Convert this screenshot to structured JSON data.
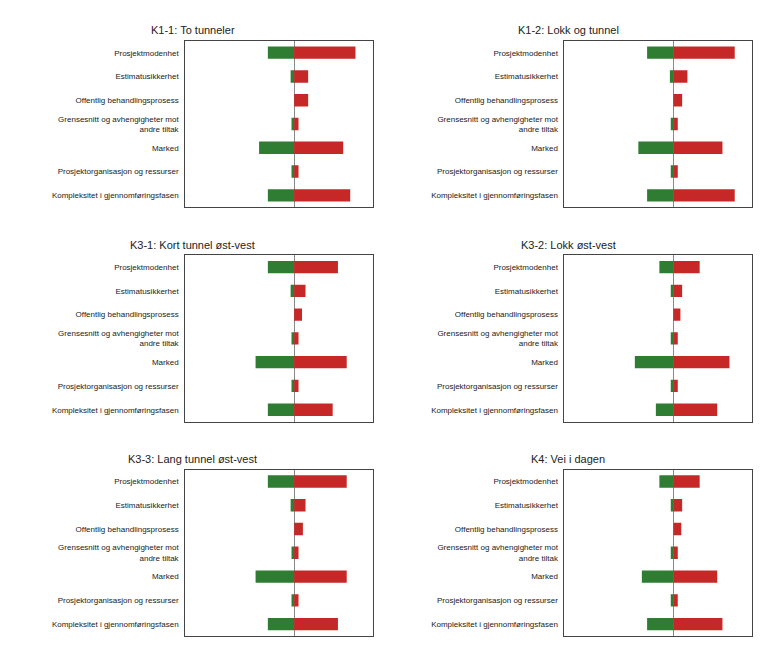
{
  "chart_data": [
    {
      "type": "bar",
      "title": "K1-1: To tunneler",
      "orientation": "horizontal",
      "categories": [
        "Prosjektmodenhet",
        "Estimatusikkerhet",
        "Offentlig behandlingsprosess",
        "Grensesnitt og avhengigheter mot\nandre tiltak",
        "Marked",
        "Prosjektorganisasjon og ressurser",
        "Kompleksitet i gjennomføringsfasen"
      ],
      "series": [
        {
          "color": "#2e7d32",
          "values": [
            -1.5,
            -0.2,
            0,
            -0.15,
            -2.0,
            -0.15,
            -1.5
          ]
        },
        {
          "color": "#c62828",
          "values": [
            3.5,
            0.8,
            0.8,
            0.25,
            2.8,
            0.25,
            3.2
          ]
        }
      ],
      "xlim": [
        -6.214285714285714,
        4.5
      ],
      "grid": false,
      "tick_labels": "y"
    },
    {
      "type": "bar",
      "title": "K1-2: Lokk og tunnel",
      "orientation": "horizontal",
      "categories": [
        "Prosjektmodenhet",
        "Estimatusikkerhet",
        "Offentlig behandlingsprosess",
        "Grensesnitt og avhengigheter mot\nandre tiltak",
        "Marked",
        "Prosjektorganisasjon og ressurser",
        "Kompleksitet i gjennomføringsfasen"
      ],
      "series": [
        {
          "color": "#2e7d32",
          "values": [
            -1.5,
            -0.2,
            0,
            -0.15,
            -2.0,
            -0.15,
            -1.5
          ]
        },
        {
          "color": "#c62828",
          "values": [
            3.5,
            0.8,
            0.5,
            0.25,
            2.8,
            0.25,
            3.5
          ]
        }
      ],
      "xlim": [
        -6.214285714285714,
        4.5
      ],
      "grid": false,
      "tick_labels": "y"
    },
    {
      "type": "bar",
      "title": "K3-1: Kort tunnel øst-vest",
      "orientation": "horizontal",
      "categories": [
        "Prosjektmodenhet",
        "Estimatusikkerhet",
        "Offentlig behandlingsprosess",
        "Grensesnitt og avhengigheter mot\nandre tiltak",
        "Marked",
        "Prosjektorganisasjon og ressurser",
        "Kompleksitet i gjennomføringsfasen"
      ],
      "series": [
        {
          "color": "#2e7d32",
          "values": [
            -1.5,
            -0.2,
            0,
            -0.15,
            -2.2,
            -0.15,
            -1.5
          ]
        },
        {
          "color": "#c62828",
          "values": [
            2.5,
            0.65,
            0.45,
            0.25,
            3.0,
            0.25,
            2.2
          ]
        }
      ],
      "xlim": [
        -6.214285714285714,
        4.5
      ],
      "grid": false,
      "tick_labels": "y"
    },
    {
      "type": "bar",
      "title": "K3-2: Lokk øst-vest",
      "orientation": "horizontal",
      "categories": [
        "Prosjektmodenhet",
        "Estimatusikkerhet",
        "Offentlig behandlingsprosess",
        "Grensesnitt og avhengigheter mot\nandre tiltak",
        "Marked",
        "Prosjektorganisasjon og ressurser",
        "Kompleksitet i gjennomføringsfasen"
      ],
      "series": [
        {
          "color": "#2e7d32",
          "values": [
            -0.8,
            -0.15,
            0,
            -0.15,
            -2.2,
            -0.15,
            -1.0
          ]
        },
        {
          "color": "#c62828",
          "values": [
            1.5,
            0.5,
            0.4,
            0.25,
            3.2,
            0.25,
            2.5
          ]
        }
      ],
      "xlim": [
        -6.214285714285714,
        4.5
      ],
      "grid": false,
      "tick_labels": "y"
    },
    {
      "type": "bar",
      "title": "K3-3: Lang tunnel øst-vest",
      "orientation": "horizontal",
      "categories": [
        "Prosjektmodenhet",
        "Estimatusikkerhet",
        "Offentlig behandlingsprosess",
        "Grensesnitt og avhengigheter mot\nandre tiltak",
        "Marked",
        "Prosjektorganisasjon og ressurser",
        "Kompleksitet i gjennomføringsfasen"
      ],
      "series": [
        {
          "color": "#2e7d32",
          "values": [
            -1.5,
            -0.2,
            0,
            -0.15,
            -2.2,
            -0.15,
            -1.5
          ]
        },
        {
          "color": "#c62828",
          "values": [
            3.0,
            0.65,
            0.5,
            0.25,
            3.0,
            0.25,
            2.5
          ]
        }
      ],
      "xlim": [
        -6.214285714285714,
        4.5
      ],
      "grid": false,
      "tick_labels": "y"
    },
    {
      "type": "bar",
      "title": "K4: Vei i dagen",
      "orientation": "horizontal",
      "categories": [
        "Prosjektmodenhet",
        "Estimatusikkerhet",
        "Offentlig behandlingsprosess",
        "Grensesnitt og avhengigheter mot\nandre tiltak",
        "Marked",
        "Prosjektorganisasjon og ressurser",
        "Kompleksitet i gjennomføringsfasen"
      ],
      "series": [
        {
          "color": "#2e7d32",
          "values": [
            -0.8,
            -0.15,
            0,
            -0.15,
            -1.8,
            -0.15,
            -1.5
          ]
        },
        {
          "color": "#c62828",
          "values": [
            1.5,
            0.5,
            0.45,
            0.25,
            2.5,
            0.25,
            2.8
          ]
        }
      ],
      "xlim": [
        -6.214285714285714,
        4.5
      ],
      "grid": false,
      "tick_labels": "y"
    }
  ]
}
